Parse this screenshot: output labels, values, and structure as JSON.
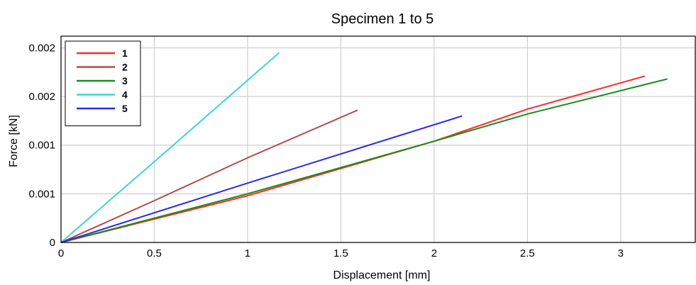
{
  "chart_data": {
    "type": "line",
    "title": "Specimen 1 to 5",
    "xlabel": "Displacement [mm]",
    "ylabel": "Force [kN]",
    "xlim": [
      0,
      3.4
    ],
    "ylim": [
      0,
      0.00212
    ],
    "grid": true,
    "legend_position": "top-left",
    "x_ticks": [
      {
        "value": 0,
        "label": "0"
      },
      {
        "value": 0.5,
        "label": "0.5"
      },
      {
        "value": 1,
        "label": "1"
      },
      {
        "value": 1.5,
        "label": "1.5"
      },
      {
        "value": 2,
        "label": "2"
      },
      {
        "value": 2.5,
        "label": "2.5"
      },
      {
        "value": 3,
        "label": "3"
      }
    ],
    "y_ticks": [
      {
        "value": 0,
        "label": "0"
      },
      {
        "value": 0.0005,
        "label": "0.001"
      },
      {
        "value": 0.001,
        "label": "0.001"
      },
      {
        "value": 0.0015,
        "label": "0.002"
      },
      {
        "value": 0.002,
        "label": "0.002"
      }
    ],
    "series": [
      {
        "name": "1",
        "color": "#ff2a2a",
        "points": [
          [
            0,
            0
          ],
          [
            1,
            0.00048
          ],
          [
            2,
            0.00104
          ],
          [
            2.5,
            0.00137
          ],
          [
            3.13,
            0.00171
          ]
        ]
      },
      {
        "name": "2",
        "color": "#b84a4a",
        "points": [
          [
            0,
            0
          ],
          [
            0.5,
            0.00043
          ],
          [
            1,
            0.00087
          ],
          [
            1.59,
            0.00136
          ]
        ]
      },
      {
        "name": "3",
        "color": "#1a8c1a",
        "points": [
          [
            0,
            0
          ],
          [
            1,
            0.0005
          ],
          [
            2,
            0.00104
          ],
          [
            2.5,
            0.00132
          ],
          [
            3.25,
            0.00168
          ]
        ]
      },
      {
        "name": "4",
        "color": "#3fd3d3",
        "points": [
          [
            0,
            0
          ],
          [
            0.5,
            0.00083
          ],
          [
            1.17,
            0.00195
          ]
        ]
      },
      {
        "name": "5",
        "color": "#2a2ae8",
        "points": [
          [
            0,
            0
          ],
          [
            1,
            0.00061
          ],
          [
            2.15,
            0.0013
          ]
        ]
      }
    ]
  }
}
